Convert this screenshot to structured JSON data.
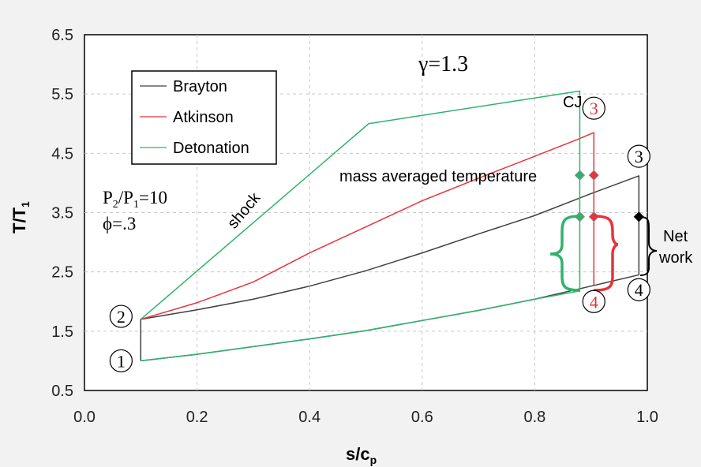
{
  "chart_data": {
    "type": "line",
    "title": "γ=1.3",
    "xlabel": "s/c",
    "xlabel_sub": "p",
    "ylabel": "T/T",
    "ylabel_sub": "1",
    "xlim": [
      0.0,
      1.0
    ],
    "ylim": [
      0.5,
      6.5
    ],
    "xticks": [
      "0.0",
      "0.2",
      "0.4",
      "0.6",
      "0.8",
      "1.0"
    ],
    "yticks": [
      "0.5",
      "1.5",
      "2.5",
      "3.5",
      "4.5",
      "5.5",
      "6.5"
    ],
    "grid": "dashed",
    "legend_position": "top-left",
    "colors": {
      "brayton": "#404040",
      "atkinson": "#e8333a",
      "detonation": "#2fb36b",
      "black": "#000000"
    },
    "series": [
      {
        "name": "Brayton",
        "color": "#404040",
        "x": [
          0.1,
          0.1,
          0.2,
          0.3,
          0.4,
          0.5,
          0.6,
          0.7,
          0.8,
          0.9,
          0.985,
          0.985,
          0.9,
          0.8,
          0.7,
          0.6,
          0.5,
          0.4,
          0.3,
          0.2,
          0.1
        ],
        "y": [
          1.0,
          1.7,
          1.86,
          2.04,
          2.26,
          2.52,
          2.82,
          3.14,
          3.45,
          3.82,
          4.12,
          2.45,
          2.26,
          2.04,
          1.85,
          1.68,
          1.51,
          1.37,
          1.24,
          1.11,
          1.0
        ]
      },
      {
        "name": "Atkinson",
        "color": "#e8333a",
        "x": [
          0.1,
          0.2,
          0.3,
          0.4,
          0.5,
          0.6,
          0.7,
          0.8,
          0.875,
          0.905,
          0.905
        ],
        "y": [
          1.7,
          1.98,
          2.33,
          2.82,
          3.26,
          3.7,
          4.08,
          4.45,
          4.73,
          4.85,
          2.28
        ]
      },
      {
        "name": "Detonation",
        "color": "#2fb36b",
        "x": [
          0.1,
          0.505,
          0.88,
          0.88,
          0.8,
          0.7,
          0.6,
          0.5,
          0.4,
          0.3,
          0.2,
          0.1
        ],
        "y": [
          1.7,
          5.0,
          5.55,
          2.18,
          2.04,
          1.85,
          1.68,
          1.51,
          1.37,
          1.24,
          1.11,
          1.0
        ]
      }
    ],
    "markers": [
      {
        "x": 0.88,
        "y": 4.13,
        "color": "#2fb36b"
      },
      {
        "x": 0.905,
        "y": 4.13,
        "color": "#e8333a"
      },
      {
        "x": 0.88,
        "y": 3.43,
        "color": "#2fb36b"
      },
      {
        "x": 0.905,
        "y": 3.43,
        "color": "#e8333a"
      },
      {
        "x": 0.985,
        "y": 3.43,
        "color": "#000000"
      }
    ],
    "state_points": [
      {
        "label": "1",
        "x": 0.065,
        "y": 1.0,
        "color": "#000000"
      },
      {
        "label": "2",
        "x": 0.065,
        "y": 1.75,
        "color": "#000000"
      },
      {
        "label": "3",
        "x": 0.905,
        "y": 5.26,
        "color": "#e8333a"
      },
      {
        "label": "3",
        "x": 0.985,
        "y": 4.45,
        "color": "#000000"
      },
      {
        "label": "4",
        "x": 0.905,
        "y": 2.0,
        "color": "#e8333a"
      },
      {
        "label": "4",
        "x": 0.985,
        "y": 2.2,
        "color": "#000000"
      }
    ],
    "annotations": {
      "cj": "CJ",
      "shock": "shock",
      "mass_avg": "mass averaged temperature",
      "pressure_ratio": "P",
      "pressure_sub2": "2",
      "pressure_slash": "/P",
      "pressure_sub1": "1",
      "pressure_val": "=10",
      "phi": "ϕ=.3",
      "net": "Net",
      "work": "work"
    }
  }
}
